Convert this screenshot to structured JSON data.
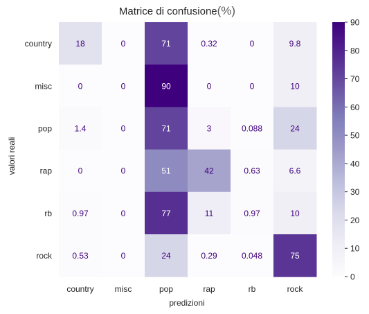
{
  "chart_data": {
    "type": "heatmap",
    "title": "Matrice di confusione",
    "title_suffix": "(%)",
    "xlabel": "predizioni",
    "ylabel": "valori reali",
    "x_categories": [
      "country",
      "misc",
      "pop",
      "rap",
      "rb",
      "rock"
    ],
    "y_categories": [
      "country",
      "misc",
      "pop",
      "rap",
      "rb",
      "rock"
    ],
    "values": [
      [
        18,
        0,
        71,
        0.32,
        0,
        9.8
      ],
      [
        0,
        0,
        90,
        0,
        0,
        10
      ],
      [
        1.4,
        0,
        71,
        3,
        0.088,
        24
      ],
      [
        0,
        0,
        51,
        42,
        0.63,
        6.6
      ],
      [
        0.97,
        0,
        77,
        11,
        0.97,
        10
      ],
      [
        0.53,
        0,
        24,
        0.29,
        0.048,
        75
      ]
    ],
    "colorbar": {
      "range": [
        0,
        90
      ],
      "ticks": [
        0,
        10,
        20,
        30,
        40,
        50,
        60,
        70,
        80,
        90
      ]
    },
    "colormap": "Purples",
    "colors": {
      "low": "#fcfbfd",
      "high": "#3f007d",
      "label_on_light": "#3f007d",
      "label_on_dark": "#ffffff"
    }
  }
}
